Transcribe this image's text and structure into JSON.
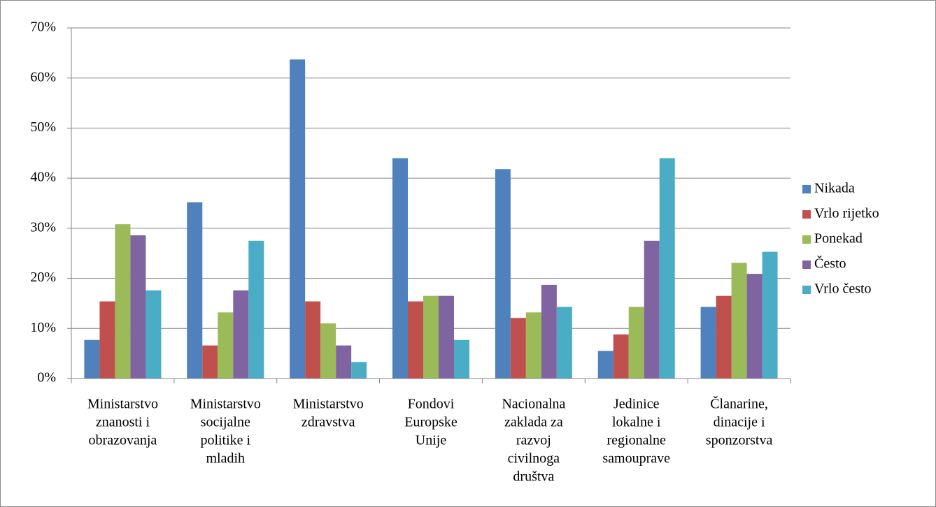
{
  "chart_data": {
    "type": "bar",
    "categories": [
      [
        "Ministarstvo",
        "znanosti i",
        "obrazovanja"
      ],
      [
        "Ministarstvo",
        "socijalne",
        "politike i",
        "mladih"
      ],
      [
        "Ministarstvo",
        "zdravstva"
      ],
      [
        "Fondovi",
        "Europske",
        "Unije"
      ],
      [
        "Nacionalna",
        "zaklada za",
        "razvoj",
        "civilnoga",
        "društva"
      ],
      [
        "Jedinice",
        "lokalne i",
        "regionalne",
        "samouprave"
      ],
      [
        "Članarine,",
        "dinacije i",
        "sponzorstva"
      ]
    ],
    "series": [
      {
        "name": "Nikada",
        "color": "#4f81bd",
        "values": [
          7.7,
          35.2,
          63.7,
          44.0,
          41.8,
          5.5,
          14.3
        ]
      },
      {
        "name": "Vrlo rijetko",
        "color": "#c0504d",
        "values": [
          15.4,
          6.6,
          15.4,
          15.4,
          12.1,
          8.8,
          16.5
        ]
      },
      {
        "name": "Ponekad",
        "color": "#9bbb59",
        "values": [
          30.8,
          13.2,
          11.0,
          16.5,
          13.2,
          14.3,
          23.1
        ]
      },
      {
        "name": "Često",
        "color": "#8064a2",
        "values": [
          28.6,
          17.6,
          6.6,
          16.5,
          18.7,
          27.5,
          20.9
        ]
      },
      {
        "name": "Vrlo često",
        "color": "#4bacc6",
        "values": [
          17.6,
          27.5,
          3.3,
          7.7,
          14.3,
          44.0,
          25.3
        ]
      }
    ],
    "ylim": [
      0,
      70
    ],
    "yticks": [
      {
        "value": 0,
        "label": "0%"
      },
      {
        "value": 10,
        "label": "10%"
      },
      {
        "value": 20,
        "label": "20%"
      },
      {
        "value": 30,
        "label": "30%"
      },
      {
        "value": 40,
        "label": "40%"
      },
      {
        "value": 50,
        "label": "50%"
      },
      {
        "value": 60,
        "label": "60%"
      },
      {
        "value": 70,
        "label": "70%"
      }
    ],
    "grid": true,
    "legend": "right"
  }
}
